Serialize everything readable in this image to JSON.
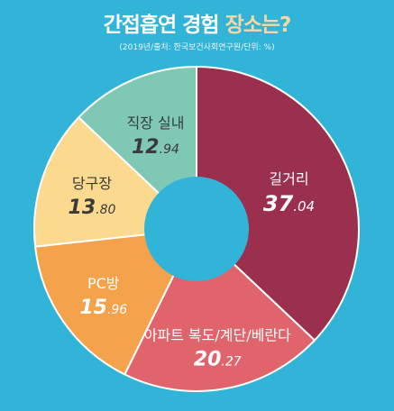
{
  "title": {
    "part1": "간접흡연",
    "part2": "경험",
    "part3": "장소는?"
  },
  "subtitle": "(2019년/출처: 한국보건사회연구원/단위: %)",
  "colors": {
    "background": "#32b4d8",
    "title_accent": "#f6d8a2",
    "hole": "#32b4d8"
  },
  "chart_data": {
    "type": "pie",
    "donut": true,
    "title": "간접흡연 경험 장소는?",
    "unit": "%",
    "slices": [
      {
        "label": "길거리",
        "value": 37.04,
        "int": "37",
        "dec": ".04",
        "color": "#9b2f4e",
        "text_color": "#ffffff"
      },
      {
        "label": "아파트 복도/계단/베란다",
        "value": 20.27,
        "int": "20",
        "dec": ".27",
        "color": "#e0646c",
        "text_color": "#ffffff"
      },
      {
        "label": "PC방",
        "value": 15.96,
        "int": "15",
        "dec": ".96",
        "color": "#f4a24b",
        "text_color": "#ffffff"
      },
      {
        "label": "당구장",
        "value": 13.8,
        "int": "13",
        "dec": ".80",
        "color": "#fbd98e",
        "text_color": "#3a3a3a"
      },
      {
        "label": "직장 실내",
        "value": 12.94,
        "int": "12",
        "dec": ".94",
        "color": "#7fc9b4",
        "text_color": "#3a3a3a"
      }
    ]
  }
}
